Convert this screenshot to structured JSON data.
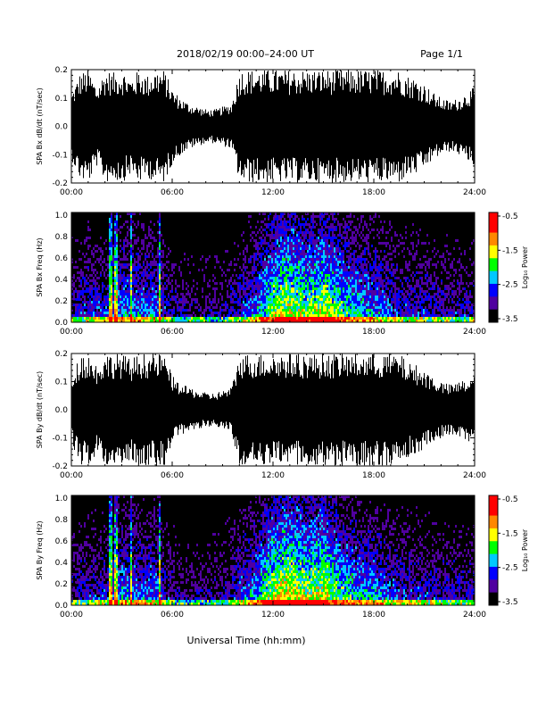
{
  "header": {
    "title": "2018/02/19   00:00–24:00 UT",
    "page_label": "Page 1/1"
  },
  "colorbar": {
    "label": "Log₁₀ Power",
    "ticks": [
      "-0.5",
      "-1.5",
      "-2.5",
      "-3.5"
    ],
    "colors": [
      "#ff0000",
      "#ff8800",
      "#ffff00",
      "#00ff00",
      "#00c8ff",
      "#0000ff",
      "#5000a0",
      "#000000"
    ]
  },
  "x_axis": {
    "ticks": [
      "00:00",
      "06:00",
      "12:00",
      "18:00",
      "24:00"
    ],
    "label": "Universal Time (hh:mm)"
  },
  "chart_data": [
    {
      "type": "line",
      "ylabel": "SPA Bx dB/dt (nT/sec)",
      "xlim": [
        0,
        24
      ],
      "ylim": [
        -0.2,
        0.2
      ],
      "yticks": [
        "0.2",
        "0.1",
        "0.0",
        "-0.1",
        "-0.2"
      ],
      "x": [
        0,
        0.5,
        1,
        1.5,
        2,
        2.5,
        3,
        3.5,
        4,
        4.5,
        5,
        5.5,
        6,
        6.5,
        7,
        7.5,
        8,
        8.5,
        9,
        9.5,
        10,
        10.5,
        11,
        11.5,
        12,
        12.5,
        13,
        13.5,
        14,
        14.5,
        15,
        15.5,
        16,
        16.5,
        17,
        17.5,
        18,
        18.5,
        19,
        19.5,
        20,
        20.5,
        21,
        21.5,
        22,
        22.5,
        23,
        23.5,
        24
      ],
      "envelope": [
        0.12,
        0.19,
        0.2,
        0.14,
        0.2,
        0.19,
        0.2,
        0.17,
        0.2,
        0.18,
        0.2,
        0.2,
        0.13,
        0.1,
        0.08,
        0.07,
        0.06,
        0.06,
        0.07,
        0.08,
        0.2,
        0.2,
        0.2,
        0.2,
        0.2,
        0.2,
        0.2,
        0.2,
        0.2,
        0.2,
        0.2,
        0.2,
        0.2,
        0.2,
        0.2,
        0.2,
        0.2,
        0.2,
        0.2,
        0.2,
        0.18,
        0.17,
        0.15,
        0.12,
        0.1,
        0.09,
        0.1,
        0.12,
        0.14
      ]
    },
    {
      "type": "heatmap",
      "ylabel": "SPA Bx Freq (Hz)",
      "xlim": [
        0,
        24
      ],
      "ylim": [
        0.0,
        1.0
      ],
      "yticks": [
        "1.0",
        "0.8",
        "0.6",
        "0.4",
        "0.2",
        "0.0"
      ],
      "zlim": [
        -3.5,
        -0.5
      ],
      "x": [
        0,
        1,
        2,
        3,
        4,
        5,
        6,
        7,
        8,
        9,
        10,
        11,
        12,
        13,
        14,
        15,
        16,
        17,
        18,
        19,
        20,
        21,
        22,
        23,
        24
      ],
      "activity_index": [
        0.25,
        0.35,
        0.3,
        0.45,
        0.4,
        0.4,
        0.2,
        0.15,
        0.15,
        0.18,
        0.3,
        0.45,
        0.7,
        0.75,
        0.65,
        0.75,
        0.6,
        0.5,
        0.45,
        0.35,
        0.3,
        0.3,
        0.25,
        0.25,
        0.25
      ],
      "spike_times": [
        2.3,
        2.6,
        3.5,
        5.2
      ]
    },
    {
      "type": "line",
      "ylabel": "SPA By dB/dt (nT/sec)",
      "xlim": [
        0,
        24
      ],
      "ylim": [
        -0.2,
        0.2
      ],
      "yticks": [
        "0.2",
        "0.1",
        "0.0",
        "-0.1",
        "-0.2"
      ],
      "x": [
        0,
        0.5,
        1,
        1.5,
        2,
        2.5,
        3,
        3.5,
        4,
        4.5,
        5,
        5.5,
        6,
        6.5,
        7,
        7.5,
        8,
        8.5,
        9,
        9.5,
        10,
        10.5,
        11,
        11.5,
        12,
        12.5,
        13,
        13.5,
        14,
        14.5,
        15,
        15.5,
        16,
        16.5,
        17,
        17.5,
        18,
        18.5,
        19,
        19.5,
        20,
        20.5,
        21,
        21.5,
        22,
        22.5,
        23,
        23.5,
        24
      ],
      "envelope": [
        0.12,
        0.2,
        0.2,
        0.16,
        0.2,
        0.2,
        0.2,
        0.18,
        0.2,
        0.2,
        0.2,
        0.2,
        0.12,
        0.09,
        0.08,
        0.07,
        0.06,
        0.06,
        0.07,
        0.08,
        0.2,
        0.2,
        0.2,
        0.2,
        0.2,
        0.2,
        0.2,
        0.2,
        0.2,
        0.2,
        0.2,
        0.2,
        0.2,
        0.2,
        0.2,
        0.2,
        0.2,
        0.2,
        0.2,
        0.2,
        0.17,
        0.16,
        0.14,
        0.12,
        0.1,
        0.09,
        0.1,
        0.11,
        0.12
      ]
    },
    {
      "type": "heatmap",
      "ylabel": "SPA By Freq (Hz)",
      "xlim": [
        0,
        24
      ],
      "ylim": [
        0.0,
        1.0
      ],
      "yticks": [
        "1.0",
        "0.8",
        "0.6",
        "0.4",
        "0.2",
        "0.0"
      ],
      "zlim": [
        -3.5,
        -0.5
      ],
      "x": [
        0,
        1,
        2,
        3,
        4,
        5,
        6,
        7,
        8,
        9,
        10,
        11,
        12,
        13,
        14,
        15,
        16,
        17,
        18,
        19,
        20,
        21,
        22,
        23,
        24
      ],
      "activity_index": [
        0.25,
        0.3,
        0.3,
        0.45,
        0.4,
        0.4,
        0.2,
        0.15,
        0.15,
        0.2,
        0.35,
        0.5,
        0.75,
        0.8,
        0.7,
        0.75,
        0.6,
        0.5,
        0.45,
        0.35,
        0.3,
        0.3,
        0.25,
        0.25,
        0.25
      ],
      "spike_times": [
        2.3,
        2.6,
        3.5,
        5.2
      ]
    }
  ]
}
